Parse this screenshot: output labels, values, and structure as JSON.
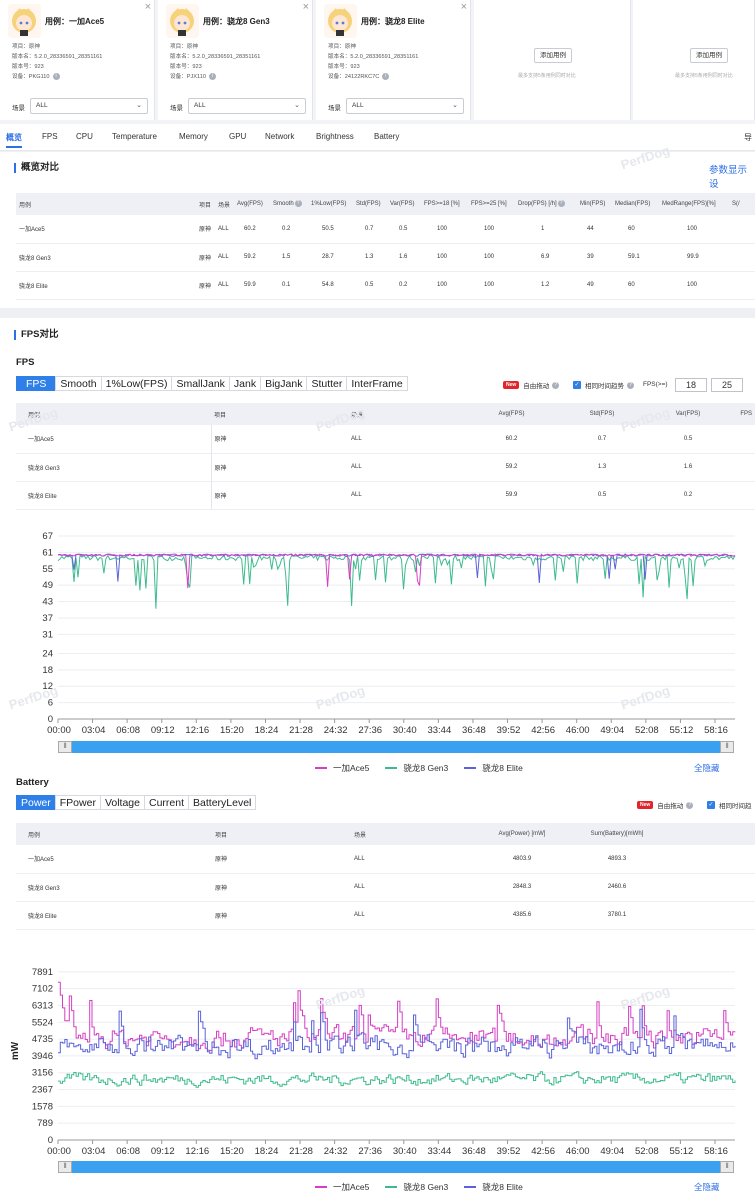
{
  "cards": [
    {
      "title": "用例：一加Ace5",
      "project": "项目：原神",
      "version_name": "版本名：5.2.0_28336591_28351161",
      "version_no": "版本号：923",
      "device": "设备：PKG110",
      "scene_label": "场景",
      "scene_value": "ALL"
    },
    {
      "title": "用例：骁龙8 Gen3",
      "project": "项目：原神",
      "version_name": "版本名：5.2.0_28336591_28351161",
      "version_no": "版本号：923",
      "device": "设备：PJX110",
      "scene_label": "场景",
      "scene_value": "ALL"
    },
    {
      "title": "用例：骁龙8 Elite",
      "project": "项目：原神",
      "version_name": "版本名：5.2.0_28336591_28351161",
      "version_no": "版本号：923",
      "device": "设备：24122RKC7C",
      "scene_label": "场景",
      "scene_value": "ALL"
    }
  ],
  "add_cards": [
    {
      "button": "添加用例",
      "hint": "最多支持5条用例同时对比"
    },
    {
      "button": "添加用例",
      "hint": "最多支持5条用例同时对比"
    }
  ],
  "top_tabs": [
    "概览",
    "FPS",
    "CPU",
    "Temperature",
    "Memory",
    "GPU",
    "Network",
    "Brightness",
    "Battery",
    "导"
  ],
  "overview": {
    "title": "概览对比",
    "param_link": "参数显示设",
    "headers": [
      "用例",
      "项目",
      "场景",
      "Avg(FPS)",
      "Smooth",
      "1%Low(FPS)",
      "Std(FPS)",
      "Var(FPS)",
      "FPS>=18 [%]",
      "FPS>=25 [%]",
      "Drop(FPS) [/h]",
      "Min(FPS)",
      "Median(FPS)",
      "MedRange(FPS)[%]",
      "S(/"
    ],
    "rows": [
      [
        "一加Ace5",
        "原神",
        "ALL",
        "60.2",
        "0.2",
        "50.5",
        "0.7",
        "0.5",
        "100",
        "100",
        "1",
        "44",
        "60",
        "100"
      ],
      [
        "骁龙8 Gen3",
        "原神",
        "ALL",
        "59.2",
        "1.5",
        "28.7",
        "1.3",
        "1.6",
        "100",
        "100",
        "6.9",
        "39",
        "59.1",
        "99.9"
      ],
      [
        "骁龙8 Elite",
        "原神",
        "ALL",
        "59.9",
        "0.1",
        "54.8",
        "0.5",
        "0.2",
        "100",
        "100",
        "1.2",
        "49",
        "60",
        "100"
      ]
    ]
  },
  "fps_section": {
    "title": "FPS对比",
    "subtitle": "FPS",
    "tabs": [
      "FPS",
      "Smooth",
      "1%Low(FPS)",
      "SmallJank",
      "Jank",
      "BigJank",
      "Stutter",
      "InterFrame"
    ],
    "new_badge": "New",
    "free_drag": "自由拖动",
    "same_trend": "相同时间趋势",
    "threshold_label": "FPS(>=)",
    "threshold_1": "18",
    "threshold_2": "25",
    "headers": [
      "用例",
      "项目",
      "场景",
      "Avg(FPS)",
      "Std(FPS)",
      "Var(FPS)",
      "FPS"
    ],
    "rows": [
      [
        "一加Ace5",
        "原神",
        "ALL",
        "60.2",
        "0.7",
        "0.5"
      ],
      [
        "骁龙8 Gen3",
        "原神",
        "ALL",
        "59.2",
        "1.3",
        "1.6"
      ],
      [
        "骁龙8 Elite",
        "原神",
        "ALL",
        "59.9",
        "0.5",
        "0.2"
      ]
    ],
    "hide_all": "全隐藏"
  },
  "battery_section": {
    "title": "Battery",
    "tabs": [
      "Power",
      "FPower",
      "Voltage",
      "Current",
      "BatteryLevel"
    ],
    "new_badge": "New",
    "free_drag": "自由拖动",
    "same_trend": "相同时间趋",
    "headers": [
      "用例",
      "项目",
      "场景",
      "Avg(Power) [mW]",
      "Sum(Battery)[mWh]"
    ],
    "rows": [
      [
        "一加Ace5",
        "原神",
        "ALL",
        "4803.9",
        "4893.3"
      ],
      [
        "骁龙8 Gen3",
        "原神",
        "ALL",
        "2848.3",
        "2460.6"
      ],
      [
        "骁龙8 Elite",
        "原神",
        "ALL",
        "4385.6",
        "3780.1"
      ]
    ],
    "hide_all": "全隐藏"
  },
  "watermark": "PerfDog",
  "colors": {
    "ace5": "#d63fc4",
    "gen3": "#3dbb8d",
    "elite": "#5a63d8",
    "accent": "#2f6fe4"
  },
  "chart_data": [
    {
      "type": "line",
      "title": "FPS",
      "yticks": [
        0,
        6,
        12,
        18,
        24,
        31,
        37,
        43,
        49,
        55,
        61,
        67
      ],
      "ylim": [
        0,
        67
      ],
      "xticks": [
        "00:00",
        "03:04",
        "06:08",
        "09:12",
        "12:16",
        "15:20",
        "18:24",
        "21:28",
        "24:32",
        "27:36",
        "30:40",
        "33:44",
        "36:48",
        "39:52",
        "42:56",
        "46:00",
        "49:04",
        "52:08",
        "55:12",
        "58:16"
      ],
      "series": [
        {
          "name": "一加Ace5",
          "typical": 60,
          "min": 44
        },
        {
          "name": "骁龙8 Gen3",
          "typical": 59,
          "min": 39
        },
        {
          "name": "骁龙8 Elite",
          "typical": 60,
          "min": 49
        }
      ],
      "legend": "bottom"
    },
    {
      "type": "line",
      "title": "Power",
      "ylabel": "mW",
      "yticks": [
        0,
        789,
        1578,
        2367,
        3156,
        3946,
        4735,
        5524,
        6313,
        7102,
        7891
      ],
      "ylim": [
        0,
        8400
      ],
      "xticks": [
        "00:00",
        "03:04",
        "06:08",
        "09:12",
        "12:16",
        "15:20",
        "18:24",
        "21:28",
        "24:32",
        "27:36",
        "30:40",
        "33:44",
        "36:48",
        "39:52",
        "42:56",
        "46:00",
        "49:04",
        "52:08",
        "55:12",
        "58:16"
      ],
      "series": [
        {
          "name": "一加Ace5",
          "avg": 4803.9
        },
        {
          "name": "骁龙8 Gen3",
          "avg": 2848.3
        },
        {
          "name": "骁龙8 Elite",
          "avg": 4385.6
        }
      ],
      "legend": "bottom"
    }
  ]
}
